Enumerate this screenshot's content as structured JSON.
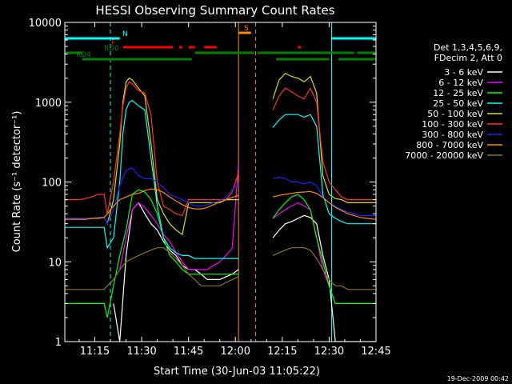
{
  "chart_data": {
    "type": "line",
    "title": "HESSI Observing Summary Count Rates",
    "xlabel": "Start Time (30-Jun-03 11:05:22)",
    "ylabel": "Count Rate (s⁻¹ detector⁻¹)",
    "ylog": true,
    "ylim": [
      1,
      10000
    ],
    "xlim_minutes": [
      665.4,
      765
    ],
    "x_ticks": [
      {
        "t": 675,
        "label": "11:15"
      },
      {
        "t": 690,
        "label": "11:30"
      },
      {
        "t": 705,
        "label": "11:45"
      },
      {
        "t": 720,
        "label": "12:00"
      },
      {
        "t": 735,
        "label": "12:15"
      },
      {
        "t": 750,
        "label": "12:30"
      },
      {
        "t": 765,
        "label": "12:45"
      }
    ],
    "y_ticks": [
      {
        "v": 1,
        "label": "1"
      },
      {
        "v": 10,
        "label": "10"
      },
      {
        "v": 100,
        "label": "100"
      },
      {
        "v": 1000,
        "label": "1000"
      },
      {
        "v": 10000,
        "label": "10000"
      }
    ],
    "legend_header": [
      "Det 1,3,4,5,6,9,",
      "FDecim 2, Att 0"
    ],
    "legend_position": "right",
    "series": [
      {
        "name": "3 - 6 keV",
        "color": "#ffffff",
        "x": [
          665.4,
          670,
          675,
          677.5,
          679,
          681,
          683,
          685,
          687,
          689,
          691,
          693,
          695,
          697,
          699,
          701,
          703,
          705,
          707,
          709,
          711,
          713,
          715,
          717,
          719,
          721,
          721.5,
          730.5,
          732,
          734,
          736,
          738,
          740,
          742,
          744,
          746,
          748,
          750,
          752,
          754,
          756,
          758,
          760,
          762,
          765
        ],
        "y": [
          null,
          null,
          null,
          null,
          null,
          3,
          1,
          12,
          45,
          55,
          40,
          30,
          25,
          18,
          14,
          12,
          9,
          8,
          8,
          7,
          6,
          6,
          6,
          6.5,
          7,
          8,
          null,
          null,
          20,
          25,
          30,
          32,
          35,
          38,
          36,
          30,
          12,
          6,
          1,
          1,
          1,
          1,
          1,
          1,
          1
        ]
      },
      {
        "name": "6 - 12 keV",
        "color": "#ff00ff",
        "x": [
          665.4,
          670,
          675,
          677.5,
          679,
          681,
          683,
          685,
          687,
          689,
          691,
          693,
          695,
          697,
          699,
          701,
          703,
          705,
          707,
          709,
          711,
          713,
          715,
          717,
          719,
          721,
          721.5,
          730.5,
          732,
          734,
          736,
          738,
          740,
          742,
          744,
          746,
          748,
          750,
          752,
          754,
          756,
          758,
          760,
          762,
          765
        ],
        "y": [
          null,
          null,
          null,
          null,
          null,
          null,
          8,
          20,
          45,
          55,
          48,
          38,
          30,
          22,
          18,
          13,
          10,
          8,
          8,
          8,
          8,
          9,
          10,
          12,
          15,
          170,
          null,
          null,
          35,
          40,
          45,
          50,
          55,
          50,
          45,
          20,
          8,
          5,
          3,
          null,
          null,
          null,
          null,
          null,
          null
        ]
      },
      {
        "name": "12 - 25 keV",
        "color": "#00ff00",
        "x": [
          665.4,
          668,
          670,
          672,
          674,
          676,
          678,
          679,
          681,
          683,
          685,
          687,
          689,
          691,
          693,
          695,
          697,
          699,
          701,
          703,
          705,
          707,
          709,
          711,
          713,
          715,
          717,
          719,
          721,
          721.5,
          730.5,
          732,
          734,
          736,
          738,
          740,
          742,
          744,
          746,
          748,
          750,
          752,
          754,
          756,
          758,
          760,
          762,
          765
        ],
        "y": [
          3,
          3,
          3,
          3,
          3,
          3,
          3,
          2,
          5,
          12,
          25,
          70,
          80,
          75,
          60,
          40,
          20,
          12,
          10,
          8,
          7,
          7,
          7,
          7,
          7,
          7,
          7,
          7,
          7,
          null,
          null,
          35,
          45,
          55,
          65,
          70,
          60,
          45,
          20,
          10,
          5,
          3,
          3,
          3,
          3,
          3,
          3,
          3
        ]
      },
      {
        "name": "25 - 50 keV",
        "color": "#00ffff",
        "x": [
          665.4,
          668,
          670,
          672,
          674,
          676,
          678,
          679,
          681,
          683,
          684,
          685,
          686,
          687,
          689,
          691,
          693,
          695,
          697,
          699,
          701,
          703,
          705,
          707,
          709,
          711,
          713,
          715,
          717,
          719,
          721,
          721.5,
          730.5,
          732,
          734,
          736,
          738,
          740,
          742,
          744,
          746,
          748,
          750,
          752,
          754,
          756,
          758,
          760,
          762,
          765
        ],
        "y": [
          27,
          27,
          27,
          27,
          27,
          27,
          27,
          15,
          20,
          100,
          400,
          800,
          1000,
          1050,
          900,
          800,
          200,
          50,
          20,
          15,
          13,
          12,
          12,
          11,
          11,
          11,
          11,
          11,
          11,
          11,
          11,
          null,
          null,
          480,
          600,
          700,
          700,
          700,
          650,
          700,
          500,
          70,
          40,
          35,
          32,
          30,
          30,
          30,
          30,
          30
        ]
      },
      {
        "name": "50 - 100 keV",
        "color": "#dddd00",
        "x": [
          665.4,
          668,
          670,
          672,
          674,
          676,
          678,
          679,
          681,
          683,
          684,
          685,
          686,
          687,
          689,
          691,
          693,
          695,
          697,
          699,
          701,
          703,
          705,
          707,
          709,
          711,
          713,
          715,
          717,
          719,
          721,
          721.5,
          730.5,
          732,
          734,
          736,
          738,
          740,
          742,
          744,
          746,
          748,
          750,
          752,
          754,
          756,
          758,
          760,
          762,
          765
        ],
        "y": [
          35,
          35,
          35,
          35,
          35,
          36,
          36,
          30,
          60,
          300,
          1000,
          1800,
          2000,
          1900,
          1500,
          1200,
          300,
          60,
          40,
          30,
          25,
          22,
          55,
          55,
          55,
          55,
          55,
          55,
          60,
          60,
          60,
          null,
          null,
          1100,
          1900,
          2300,
          2100,
          2000,
          1800,
          2100,
          1300,
          120,
          70,
          62,
          60,
          55,
          55,
          55,
          55,
          55
        ]
      },
      {
        "name": "100 - 300 keV",
        "color": "#ff3030",
        "x": [
          665.4,
          668,
          670,
          672,
          674,
          676,
          678,
          679,
          681,
          683,
          684,
          685,
          686,
          687,
          689,
          691,
          693,
          695,
          697,
          699,
          701,
          703,
          705,
          707,
          709,
          711,
          713,
          715,
          717,
          719,
          721,
          721.5,
          730.5,
          732,
          734,
          736,
          738,
          740,
          742,
          744,
          746,
          748,
          750,
          752,
          754,
          756,
          758,
          760,
          762,
          765
        ],
        "y": [
          60,
          60,
          60,
          62,
          65,
          70,
          70,
          40,
          100,
          400,
          900,
          1500,
          1800,
          1700,
          1400,
          1300,
          700,
          100,
          50,
          45,
          40,
          38,
          60,
          60,
          60,
          60,
          60,
          60,
          60,
          75,
          130,
          null,
          null,
          800,
          1200,
          1500,
          1350,
          1200,
          1100,
          1500,
          1000,
          180,
          100,
          80,
          65,
          60,
          60,
          60,
          60,
          60
        ]
      },
      {
        "name": "300 - 800 keV",
        "color": "#2020ff",
        "x": [
          665.4,
          668,
          670,
          672,
          674,
          676,
          678,
          679,
          681,
          683,
          685,
          687,
          689,
          691,
          693,
          695,
          697,
          699,
          701,
          703,
          705,
          707,
          709,
          711,
          713,
          715,
          717,
          719,
          721,
          721.5,
          730.5,
          732,
          734,
          736,
          738,
          740,
          742,
          744,
          746,
          748,
          750,
          752,
          754,
          756,
          758,
          760,
          762,
          765
        ],
        "y": [
          35,
          35,
          35,
          35,
          35,
          36,
          36,
          30,
          45,
          90,
          140,
          150,
          120,
          110,
          110,
          100,
          85,
          70,
          65,
          60,
          55,
          50,
          50,
          52,
          55,
          58,
          65,
          80,
          95,
          null,
          null,
          110,
          115,
          110,
          100,
          100,
          95,
          100,
          90,
          65,
          55,
          50,
          45,
          42,
          40,
          38,
          38,
          38
        ]
      },
      {
        "name": "800 - 7000 keV",
        "color": "#ff8c00",
        "x": [
          665.4,
          668,
          670,
          672,
          674,
          676,
          678,
          679,
          681,
          683,
          685,
          687,
          689,
          691,
          693,
          695,
          697,
          699,
          701,
          703,
          705,
          707,
          709,
          711,
          713,
          715,
          717,
          719,
          721,
          721.5,
          730.5,
          732,
          734,
          736,
          738,
          740,
          742,
          744,
          746,
          748,
          750,
          752,
          754,
          756,
          758,
          760,
          762,
          765
        ],
        "y": [
          34,
          34,
          34,
          34,
          35,
          35,
          36,
          40,
          50,
          60,
          65,
          70,
          72,
          78,
          82,
          80,
          74,
          65,
          58,
          52,
          48,
          46,
          46,
          48,
          52,
          56,
          60,
          64,
          68,
          null,
          null,
          65,
          68,
          70,
          72,
          74,
          75,
          76,
          72,
          64,
          55,
          48,
          44,
          40,
          38,
          36,
          35,
          34
        ]
      },
      {
        "name": "7000 - 20000 keV",
        "color": "#8b7a10",
        "x": [
          665.4,
          668,
          670,
          672,
          674,
          676,
          678,
          679,
          681,
          683,
          685,
          687,
          689,
          691,
          693,
          695,
          697,
          699,
          701,
          703,
          705,
          707,
          709,
          711,
          713,
          715,
          717,
          719,
          721,
          721.5,
          730.5,
          732,
          734,
          736,
          738,
          740,
          742,
          744,
          746,
          748,
          750,
          752,
          754,
          756,
          758,
          760,
          762,
          765
        ],
        "y": [
          4.5,
          4.5,
          4.5,
          4.5,
          4.5,
          4.5,
          4.5,
          5,
          6,
          8,
          10,
          11,
          12,
          13,
          14,
          15,
          15,
          13,
          11,
          9,
          7,
          6,
          5,
          5,
          5,
          5,
          5.5,
          6,
          6.5,
          null,
          null,
          12,
          13,
          14,
          15,
          15,
          15,
          14,
          11,
          8,
          6,
          5,
          5,
          4.5,
          4.5,
          4.5,
          4.5,
          4.5
        ]
      }
    ],
    "attenuator_bars": [
      {
        "label": "N",
        "color": "#00ffff",
        "segments": [
          [
            665.4,
            683
          ],
          [
            750.8,
            765
          ]
        ]
      },
      {
        "label": "F",
        "color": "#ff0000",
        "segments": [
          [
            684,
            700
          ],
          [
            702,
            703
          ],
          [
            705,
            707
          ],
          [
            710,
            714
          ],
          [
            740,
            741
          ]
        ]
      },
      {
        "label": "S",
        "color": "#ff8c00",
        "segments": [
          [
            721,
            725
          ]
        ]
      },
      {
        "label": "RD0",
        "color": "#008000",
        "segments": [
          [
            665.4,
            671
          ],
          [
            707,
            726
          ],
          [
            727,
            758
          ],
          [
            759,
            765
          ]
        ]
      },
      {
        "label": "RD4",
        "color": "#008000",
        "segments": [
          [
            671,
            706
          ],
          [
            733,
            750
          ],
          [
            753,
            765
          ]
        ]
      }
    ],
    "vertical_lines": [
      {
        "t": 665.4,
        "color": "#00ffff",
        "style": "solid"
      },
      {
        "t": 680,
        "color": "#00ffff",
        "style": "dashed"
      },
      {
        "t": 721,
        "color": "#ff8c00",
        "style": "solid"
      },
      {
        "t": 726.5,
        "color": "#ff8c00",
        "style": "dashed"
      },
      {
        "t": 750.8,
        "color": "#00ffff",
        "style": "solid"
      },
      {
        "t": 765,
        "color": "#00ffff",
        "style": "dashed"
      }
    ]
  },
  "timestamp": "19-Dec-2009 00:42"
}
